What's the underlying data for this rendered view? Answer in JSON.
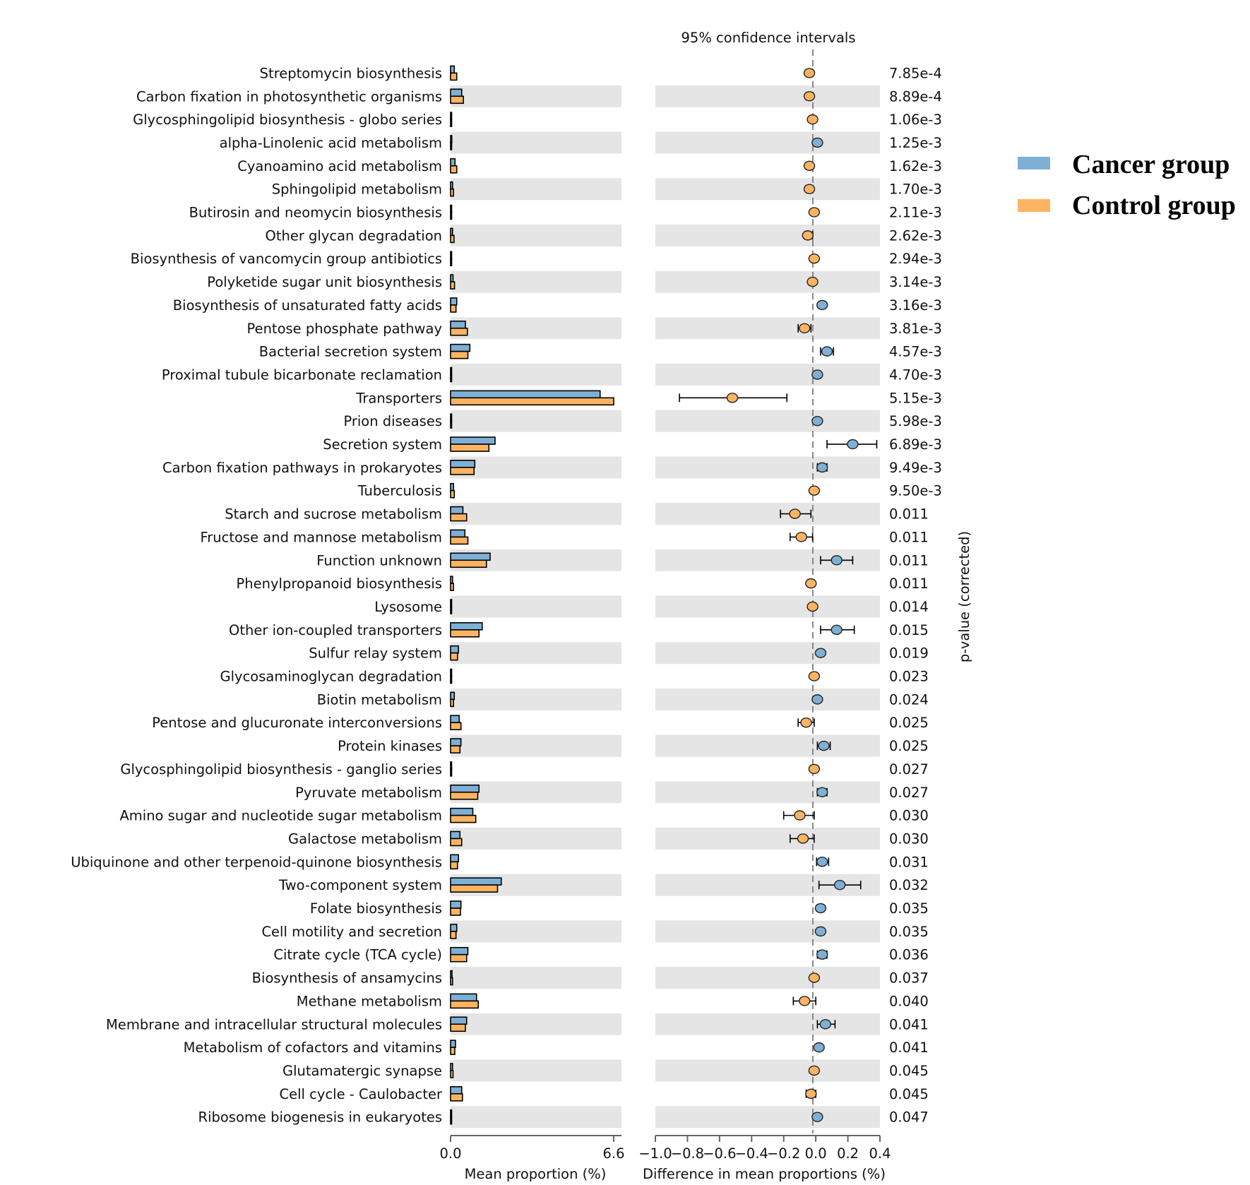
{
  "chart_data": {
    "type": "extended_error_bar",
    "title": "95% confidence intervals",
    "left_xlabel": "Mean proportion (%)",
    "right_xlabel": "Difference in mean proportions (%)",
    "pvalue_label": "p-value (corrected)",
    "left_xlim": [
      0.0,
      6.6
    ],
    "left_ticks": [
      "0.0",
      "6.6"
    ],
    "right_xlim": [
      -1.0,
      0.4
    ],
    "right_ticks": [
      "−1.0",
      "−0.8",
      "−0.6",
      "−0.4",
      "−0.2",
      "0.0",
      "0.2",
      "0.4"
    ],
    "legend": [
      {
        "name": "Cancer group",
        "color": "#7eb0d5"
      },
      {
        "name": "Control group",
        "color": "#fdb462"
      }
    ],
    "rows": [
      {
        "label": "Streptomycin biosynthesis",
        "cancer": 0.15,
        "control": 0.25,
        "diff": -0.04,
        "lo": -0.06,
        "hi": -0.02,
        "p": "7.85e-4"
      },
      {
        "label": "Carbon fixation in photosynthetic organisms",
        "cancer": 0.45,
        "control": 0.52,
        "diff": -0.04,
        "lo": -0.06,
        "hi": -0.02,
        "p": "8.89e-4"
      },
      {
        "label": "Glycosphingolipid biosynthesis - globo series",
        "cancer": 0.02,
        "control": 0.04,
        "diff": -0.02,
        "lo": -0.03,
        "hi": -0.01,
        "p": "1.06e-3"
      },
      {
        "label": "alpha-Linolenic acid metabolism",
        "cancer": 0.05,
        "control": 0.03,
        "diff": 0.01,
        "lo": 0.005,
        "hi": 0.02,
        "p": "1.25e-3"
      },
      {
        "label": "Cyanoamino acid metabolism",
        "cancer": 0.18,
        "control": 0.25,
        "diff": -0.04,
        "lo": -0.06,
        "hi": -0.02,
        "p": "1.62e-3"
      },
      {
        "label": "Sphingolipid metabolism",
        "cancer": 0.08,
        "control": 0.12,
        "diff": -0.04,
        "lo": -0.06,
        "hi": -0.02,
        "p": "1.70e-3"
      },
      {
        "label": "Butirosin and neomycin biosynthesis",
        "cancer": 0.02,
        "control": 0.03,
        "diff": -0.01,
        "lo": -0.02,
        "hi": 0.0,
        "p": "2.11e-3"
      },
      {
        "label": "Other glycan degradation",
        "cancer": 0.08,
        "control": 0.14,
        "diff": -0.05,
        "lo": -0.07,
        "hi": -0.02,
        "p": "2.62e-3"
      },
      {
        "label": "Biosynthesis of vancomycin group antibiotics",
        "cancer": 0.02,
        "control": 0.03,
        "diff": -0.01,
        "lo": -0.015,
        "hi": -0.005,
        "p": "2.94e-3"
      },
      {
        "label": "Polyketide sugar unit biosynthesis",
        "cancer": 0.1,
        "control": 0.16,
        "diff": -0.02,
        "lo": -0.03,
        "hi": -0.01,
        "p": "3.14e-3"
      },
      {
        "label": "Biosynthesis of unsaturated fatty acids",
        "cancer": 0.25,
        "control": 0.22,
        "diff": 0.04,
        "lo": 0.02,
        "hi": 0.06,
        "p": "3.16e-3"
      },
      {
        "label": "Pentose phosphate pathway",
        "cancer": 0.6,
        "control": 0.68,
        "diff": -0.07,
        "lo": -0.11,
        "hi": -0.03,
        "p": "3.81e-3"
      },
      {
        "label": "Bacterial secretion system",
        "cancer": 0.78,
        "control": 0.7,
        "diff": 0.07,
        "lo": 0.03,
        "hi": 0.11,
        "p": "4.57e-3"
      },
      {
        "label": "Proximal tubule bicarbonate reclamation",
        "cancer": 0.02,
        "control": 0.03,
        "diff": 0.01,
        "lo": 0.0,
        "hi": 0.02,
        "p": "4.70e-3"
      },
      {
        "label": "Transporters",
        "cancer": 6.05,
        "control": 6.6,
        "diff": -0.52,
        "lo": -0.85,
        "hi": -0.18,
        "p": "5.15e-3"
      },
      {
        "label": "Prion diseases",
        "cancer": 0.02,
        "control": 0.02,
        "diff": 0.01,
        "lo": 0.005,
        "hi": 0.015,
        "p": "5.98e-3"
      },
      {
        "label": "Secretion system",
        "cancer": 1.8,
        "control": 1.55,
        "diff": 0.23,
        "lo": 0.07,
        "hi": 0.38,
        "p": "6.89e-3"
      },
      {
        "label": "Carbon fixation pathways in prokaryotes",
        "cancer": 0.98,
        "control": 0.95,
        "diff": 0.04,
        "lo": 0.01,
        "hi": 0.07,
        "p": "9.49e-3"
      },
      {
        "label": "Tuberculosis",
        "cancer": 0.12,
        "control": 0.15,
        "diff": -0.01,
        "lo": -0.02,
        "hi": 0.0,
        "p": "9.50e-3"
      },
      {
        "label": "Starch and sucrose metabolism",
        "cancer": 0.5,
        "control": 0.65,
        "diff": -0.13,
        "lo": -0.22,
        "hi": -0.03,
        "p": "0.011"
      },
      {
        "label": "Fructose and mannose metabolism",
        "cancer": 0.58,
        "control": 0.7,
        "diff": -0.09,
        "lo": -0.16,
        "hi": -0.02,
        "p": "0.011"
      },
      {
        "label": "Function unknown",
        "cancer": 1.6,
        "control": 1.45,
        "diff": 0.13,
        "lo": 0.03,
        "hi": 0.23,
        "p": "0.011"
      },
      {
        "label": "Phenylpropanoid biosynthesis",
        "cancer": 0.08,
        "control": 0.12,
        "diff": -0.03,
        "lo": -0.05,
        "hi": -0.01,
        "p": "0.011"
      },
      {
        "label": "Lysosome",
        "cancer": 0.02,
        "control": 0.03,
        "diff": -0.02,
        "lo": -0.03,
        "hi": -0.01,
        "p": "0.014"
      },
      {
        "label": "Other ion-coupled transporters",
        "cancer": 1.28,
        "control": 1.15,
        "diff": 0.13,
        "lo": 0.03,
        "hi": 0.24,
        "p": "0.015"
      },
      {
        "label": "Sulfur relay system",
        "cancer": 0.32,
        "control": 0.28,
        "diff": 0.03,
        "lo": 0.015,
        "hi": 0.05,
        "p": "0.019"
      },
      {
        "label": "Glycosaminoglycan degradation",
        "cancer": 0.01,
        "control": 0.02,
        "diff": -0.01,
        "lo": -0.02,
        "hi": 0.0,
        "p": "0.023"
      },
      {
        "label": "Biotin metabolism",
        "cancer": 0.15,
        "control": 0.12,
        "diff": 0.01,
        "lo": 0.005,
        "hi": 0.02,
        "p": "0.024"
      },
      {
        "label": "Pentose and glucuronate interconversions",
        "cancer": 0.35,
        "control": 0.42,
        "diff": -0.06,
        "lo": -0.11,
        "hi": -0.01,
        "p": "0.025"
      },
      {
        "label": "Protein kinases",
        "cancer": 0.42,
        "control": 0.38,
        "diff": 0.05,
        "lo": 0.01,
        "hi": 0.09,
        "p": "0.025"
      },
      {
        "label": "Glycosphingolipid biosynthesis - ganglio series",
        "cancer": 0.01,
        "control": 0.02,
        "diff": -0.01,
        "lo": -0.015,
        "hi": -0.005,
        "p": "0.027"
      },
      {
        "label": "Pyruvate metabolism",
        "cancer": 1.15,
        "control": 1.1,
        "diff": 0.04,
        "lo": 0.01,
        "hi": 0.07,
        "p": "0.027"
      },
      {
        "label": "Amino sugar and nucleotide sugar metabolism",
        "cancer": 0.9,
        "control": 1.02,
        "diff": -0.1,
        "lo": -0.2,
        "hi": -0.01,
        "p": "0.030"
      },
      {
        "label": "Galactose metabolism",
        "cancer": 0.38,
        "control": 0.45,
        "diff": -0.08,
        "lo": -0.16,
        "hi": -0.01,
        "p": "0.030"
      },
      {
        "label": "Ubiquinone and other terpenoid-quinone biosynthesis",
        "cancer": 0.32,
        "control": 0.28,
        "diff": 0.04,
        "lo": 0.005,
        "hi": 0.08,
        "p": "0.031"
      },
      {
        "label": "Two-component system",
        "cancer": 2.05,
        "control": 1.9,
        "diff": 0.15,
        "lo": 0.02,
        "hi": 0.28,
        "p": "0.032"
      },
      {
        "label": "Folate biosynthesis",
        "cancer": 0.42,
        "control": 0.4,
        "diff": 0.03,
        "lo": 0.01,
        "hi": 0.05,
        "p": "0.035"
      },
      {
        "label": "Cell motility and secretion",
        "cancer": 0.25,
        "control": 0.22,
        "diff": 0.03,
        "lo": 0.01,
        "hi": 0.05,
        "p": "0.035"
      },
      {
        "label": "Citrate cycle (TCA cycle)",
        "cancer": 0.7,
        "control": 0.65,
        "diff": 0.04,
        "lo": 0.01,
        "hi": 0.07,
        "p": "0.036"
      },
      {
        "label": "Biosynthesis of ansamycins",
        "cancer": 0.06,
        "control": 0.08,
        "diff": -0.01,
        "lo": -0.02,
        "hi": 0.0,
        "p": "0.037"
      },
      {
        "label": "Methane metabolism",
        "cancer": 1.05,
        "control": 1.12,
        "diff": -0.07,
        "lo": -0.14,
        "hi": 0.0,
        "p": "0.040"
      },
      {
        "label": "Membrane and intracellular structural molecules",
        "cancer": 0.65,
        "control": 0.6,
        "diff": 0.06,
        "lo": 0.01,
        "hi": 0.12,
        "p": "0.041"
      },
      {
        "label": "Metabolism of cofactors and vitamins",
        "cancer": 0.2,
        "control": 0.17,
        "diff": 0.02,
        "lo": 0.01,
        "hi": 0.03,
        "p": "0.041"
      },
      {
        "label": "Glutamatergic synapse",
        "cancer": 0.08,
        "control": 0.1,
        "diff": -0.01,
        "lo": -0.02,
        "hi": 0.0,
        "p": "0.045"
      },
      {
        "label": "Cell cycle - Caulobacter",
        "cancer": 0.45,
        "control": 0.48,
        "diff": -0.03,
        "lo": -0.06,
        "hi": 0.0,
        "p": "0.045"
      },
      {
        "label": "Ribosome biogenesis in eukaryotes",
        "cancer": 0.02,
        "control": 0.03,
        "diff": 0.01,
        "lo": 0.0,
        "hi": 0.02,
        "p": "0.047"
      }
    ]
  }
}
